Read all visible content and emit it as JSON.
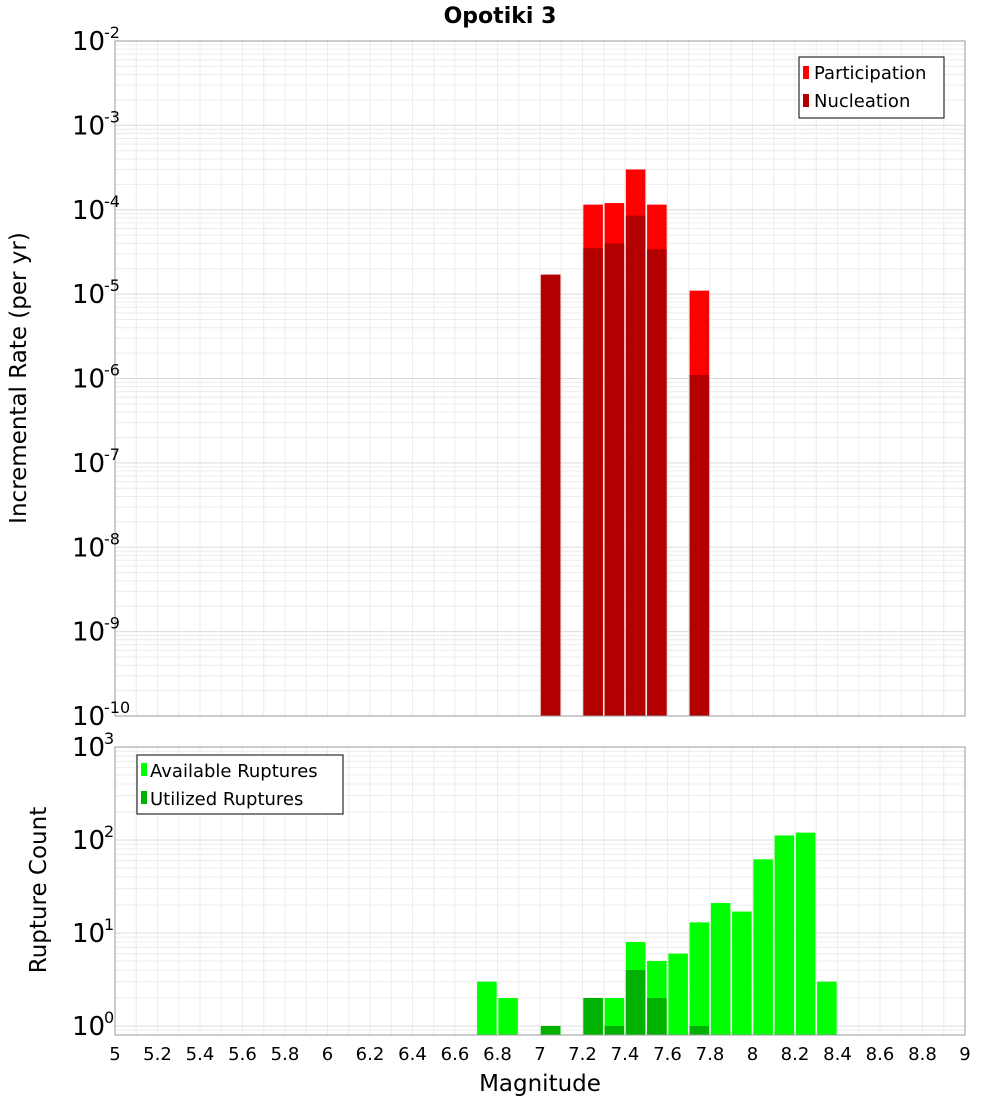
{
  "chart_data": [
    {
      "type": "bar",
      "title": "Opotiki 3",
      "xlabel": "",
      "ylabel": "Incremental Rate (per yr)",
      "yscale": "log",
      "ylim": [
        1e-10,
        0.01
      ],
      "xlim": [
        5,
        9
      ],
      "y_tick_exponents": [
        -10,
        -9,
        -8,
        -7,
        -6,
        -5,
        -4,
        -3,
        -2
      ],
      "grid": true,
      "legend_position": "top-right",
      "series": [
        {
          "name": "Participation",
          "color": "#ff0000",
          "x": [
            7.05,
            7.25,
            7.35,
            7.45,
            7.55,
            7.75
          ],
          "values": [
            1.7e-05,
            0.000115,
            0.00012,
            0.0003,
            0.000115,
            1.1e-05
          ]
        },
        {
          "name": "Nucleation",
          "color": "#b20000",
          "x": [
            7.05,
            7.25,
            7.35,
            7.45,
            7.55,
            7.75
          ],
          "values": [
            1.7e-05,
            3.5e-05,
            4e-05,
            8.5e-05,
            3.4e-05,
            1.1e-06
          ]
        }
      ]
    },
    {
      "type": "bar",
      "title": "",
      "xlabel": "Magnitude",
      "ylabel": "Rupture Count",
      "yscale": "log",
      "ylim": [
        0.8,
        1000
      ],
      "xlim": [
        5,
        9
      ],
      "x_ticks": [
        "5",
        "5.2",
        "5.4",
        "5.6",
        "5.8",
        "6",
        "6.2",
        "6.4",
        "6.6",
        "6.8",
        "7",
        "7.2",
        "7.4",
        "7.6",
        "7.8",
        "8",
        "8.2",
        "8.4",
        "8.6",
        "8.8",
        "9"
      ],
      "y_tick_exponents": [
        0,
        1,
        2,
        3
      ],
      "grid": true,
      "legend_position": "top-left",
      "series": [
        {
          "name": "Available Ruptures",
          "color": "#00ff00",
          "x": [
            6.75,
            6.85,
            7.05,
            7.25,
            7.35,
            7.45,
            7.55,
            7.65,
            7.75,
            7.85,
            7.95,
            8.05,
            8.15,
            8.25,
            8.35
          ],
          "values": [
            3,
            2,
            1,
            2,
            2,
            8,
            5,
            6,
            13,
            21,
            17,
            62,
            112,
            120,
            3
          ]
        },
        {
          "name": "Utilized Ruptures",
          "color": "#00b200",
          "x": [
            7.05,
            7.25,
            7.35,
            7.45,
            7.55,
            7.75
          ],
          "values": [
            1,
            2,
            1,
            4,
            2,
            1
          ]
        }
      ]
    }
  ]
}
